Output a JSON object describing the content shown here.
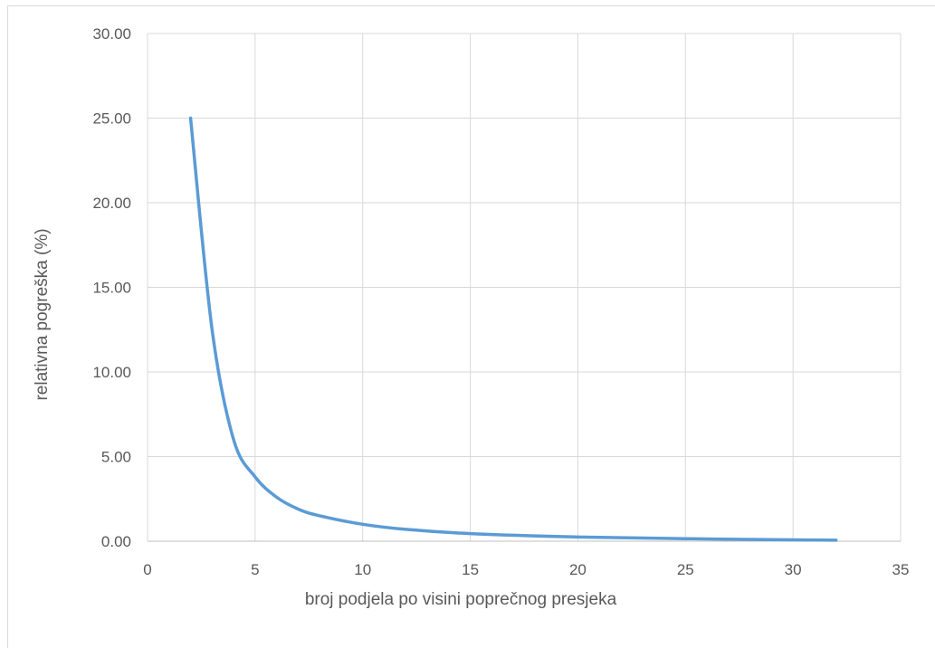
{
  "chart_data": {
    "type": "line",
    "title": "",
    "xlabel": "broj podjela po visini poprečnog presjeka",
    "ylabel": "relativna pogreška (%)",
    "xlim": [
      0,
      35
    ],
    "ylim": [
      0,
      30
    ],
    "x_ticks": [
      "0",
      "5",
      "10",
      "15",
      "20",
      "25",
      "30",
      "35"
    ],
    "y_ticks": [
      "0.00",
      "5.00",
      "10.00",
      "15.00",
      "20.00",
      "25.00",
      "30.00"
    ],
    "grid": true,
    "legend": "none",
    "series": [
      {
        "color": "#5b9bd5",
        "x": [
          2,
          3,
          4,
          5,
          6,
          7,
          8,
          10,
          12,
          15,
          20,
          25,
          30,
          32
        ],
        "values": [
          25.0,
          12.5,
          6.0,
          3.8,
          2.6,
          1.9,
          1.5,
          1.0,
          0.7,
          0.45,
          0.25,
          0.15,
          0.08,
          0.06
        ]
      }
    ]
  }
}
